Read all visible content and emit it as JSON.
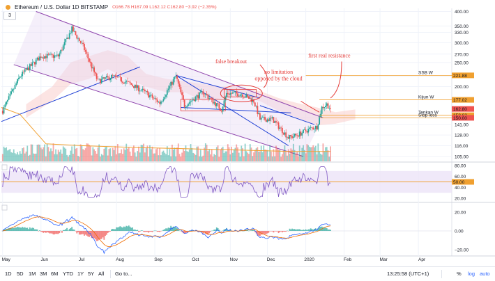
{
  "header": {
    "title": "Ethereum / U.S. Dollar  1D  BITSTAMP",
    "ohlc": "O166.78 H167.09 L162.12 C162.80 −3.92 (−2.35%)",
    "collapse_label": "3"
  },
  "colors": {
    "up": "#26a69a",
    "down": "#ef5350",
    "orange": "#f0a030",
    "red": "#e53935",
    "blue": "#1e3fd4",
    "purple": "#8e44ad",
    "cloud": "#f8c3c0",
    "rsi_band": "#ece3f7",
    "rsi_line": "#7e57c2",
    "macd": "#2962ff",
    "signal": "#ef6c00"
  },
  "toolbar": {
    "ranges": [
      "1D",
      "5D",
      "1M",
      "3M",
      "6M",
      "YTD",
      "1Y",
      "5Y",
      "All"
    ],
    "goto": "Go to...",
    "time": "13:25:58 (UTC+1)",
    "percent": "%",
    "log": "log",
    "auto": "auto"
  },
  "chart_data": {
    "type": "candlestick",
    "symbol": "Ethereum / U.S. Dollar",
    "interval": "1D",
    "exchange": "BITSTAMP",
    "x_labels": [
      "May",
      "Jun",
      "Jul",
      "Aug",
      "Sep",
      "Oct",
      "Nov",
      "Dec",
      "2020",
      "Feb",
      "Mar",
      "Apr"
    ],
    "y_scale": "log",
    "price_ticks": [
      105,
      116,
      128,
      141,
      150,
      200,
      220,
      250,
      270,
      300,
      330,
      350,
      400
    ],
    "price_tick_labels": [
      "105.00",
      "116.00",
      "128.00",
      "141.00",
      "150.00",
      "200.00",
      "220.00",
      "250.00",
      "270.00",
      "300.00",
      "330.00",
      "350.00",
      "400.00"
    ],
    "price_anchors": [
      {
        "date": "2019-05-01",
        "close": 160
      },
      {
        "date": "2019-05-15",
        "close": 220
      },
      {
        "date": "2019-06-01",
        "close": 265
      },
      {
        "date": "2019-06-15",
        "close": 265
      },
      {
        "date": "2019-06-26",
        "close": 340
      },
      {
        "date": "2019-07-05",
        "close": 290
      },
      {
        "date": "2019-07-17",
        "close": 210
      },
      {
        "date": "2019-07-29",
        "close": 220
      },
      {
        "date": "2019-08-12",
        "close": 205
      },
      {
        "date": "2019-08-24",
        "close": 190
      },
      {
        "date": "2019-09-05",
        "close": 172
      },
      {
        "date": "2019-09-18",
        "close": 220
      },
      {
        "date": "2019-09-25",
        "close": 168
      },
      {
        "date": "2019-10-10",
        "close": 190
      },
      {
        "date": "2019-10-25",
        "close": 162
      },
      {
        "date": "2019-10-29",
        "close": 188
      },
      {
        "date": "2019-11-10",
        "close": 187
      },
      {
        "date": "2019-11-20",
        "close": 175
      },
      {
        "date": "2019-11-25",
        "close": 148
      },
      {
        "date": "2019-12-05",
        "close": 148
      },
      {
        "date": "2019-12-18",
        "close": 125
      },
      {
        "date": "2019-12-25",
        "close": 128
      },
      {
        "date": "2020-01-05",
        "close": 136
      },
      {
        "date": "2020-01-10",
        "close": 138
      },
      {
        "date": "2020-01-14",
        "close": 165
      },
      {
        "date": "2020-01-18",
        "close": 170
      },
      {
        "date": "2020-01-21",
        "close": 162.8
      }
    ],
    "horizontal_levels": [
      {
        "label": "SSB W",
        "value": 221.88,
        "price_label": "221.88"
      },
      {
        "label": "Kijun W",
        "value": 177.02,
        "price_label": "177.02"
      },
      {
        "label": "Tenkan W",
        "value": 153.62,
        "price_label": "153.62"
      },
      {
        "label": "Stop loss",
        "value": 150.0,
        "price_label": "150.00"
      }
    ],
    "last_price": {
      "value": 162.8,
      "label": "162.80"
    },
    "annotations": [
      "false breakout",
      "no limitation opposed by the cloud",
      "first real resistance"
    ],
    "rsi": {
      "ticks": [
        80,
        60,
        40,
        20
      ],
      "tick_labels": [
        "80.00",
        "60.00",
        "40.00",
        "20.00"
      ],
      "level_label": "50.00",
      "level": 50,
      "band": [
        30,
        70
      ]
    },
    "macd": {
      "ticks": [
        20,
        0,
        -20
      ],
      "tick_labels": [
        "20.00",
        "0.00",
        "−20.00"
      ]
    }
  }
}
